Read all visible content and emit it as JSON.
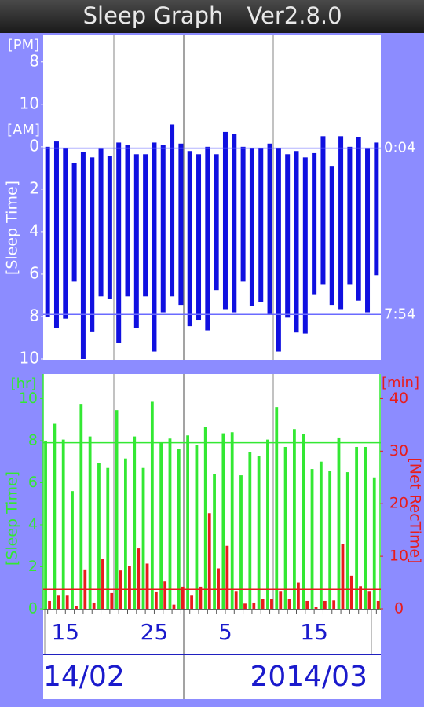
{
  "header": {
    "title": "Sleep Graph",
    "version": "Ver2.8.0"
  },
  "chart_data": [
    {
      "type": "range_bar",
      "y_label": "[Sleep Time]",
      "annotations": [
        "[PM]",
        "[AM]"
      ],
      "color": "#1010e0",
      "ylim": [
        -5.25,
        10
      ],
      "y_inverted": true,
      "yticks": [
        {
          "value": -4,
          "label": "8"
        },
        {
          "value": -2,
          "label": "10"
        },
        0,
        2,
        4,
        6,
        8,
        10
      ],
      "reference_lines": [
        {
          "value": 0.0667,
          "label": "0:04"
        },
        {
          "value": 7.9,
          "label": "7:54"
        }
      ],
      "reference_color": "#6a6aff",
      "starts": [
        0,
        -0.25,
        0.05,
        0.75,
        0.25,
        0.5,
        0.1,
        0.45,
        -0.2,
        -0.1,
        0.35,
        0.35,
        -0.2,
        -0.1,
        -1.05,
        -0.15,
        0.2,
        0.35,
        0,
        0.35,
        -0.7,
        -0.6,
        0,
        0.05,
        0.05,
        -0.15,
        0.05,
        0.35,
        0.2,
        0.5,
        0.3,
        -0.5,
        0.9,
        -0.5,
        0,
        -0.45,
        0.1,
        -0.2
      ],
      "ends": [
        8.0,
        8.55,
        8.1,
        6.35,
        10.0,
        8.7,
        7.05,
        7.15,
        9.25,
        7.05,
        8.55,
        7.05,
        9.65,
        7.8,
        7.05,
        7.45,
        8.45,
        8.15,
        8.65,
        6.75,
        7.65,
        7.8,
        6.35,
        7.5,
        7.3,
        7.9,
        9.65,
        8.05,
        8.75,
        8.8,
        6.95,
        6.5,
        7.45,
        7.65,
        6.5,
        7.25,
        7.8,
        6.05
      ]
    },
    {
      "type": "bar",
      "y_unit": "[hr]",
      "y2_unit": "[min]",
      "y_label": "[Sleep Time]",
      "y2_label": "[Net RecTime]",
      "categories": [
        null,
        null,
        "15",
        null,
        null,
        null,
        null,
        null,
        null,
        null,
        null,
        null,
        "25",
        null,
        null,
        null,
        null,
        null,
        null,
        null,
        "5",
        null,
        null,
        null,
        null,
        null,
        null,
        null,
        null,
        null,
        "15",
        null,
        null,
        null,
        null,
        null,
        null,
        null
      ],
      "x_group_labels": [
        "14/02",
        "2014/03"
      ],
      "ylim": [
        0,
        11.1
      ],
      "yticks": [
        0,
        2,
        4,
        6,
        8,
        10
      ],
      "y2lim": [
        0,
        44.4
      ],
      "y2ticks": [
        0,
        10,
        20,
        30,
        40
      ],
      "series": [
        {
          "color": "#33e833",
          "values": [
            8.0,
            8.8,
            8.05,
            5.6,
            9.75,
            8.2,
            6.95,
            6.7,
            9.45,
            7.15,
            8.2,
            6.7,
            9.85,
            7.9,
            8.1,
            7.6,
            8.25,
            7.8,
            8.65,
            6.4,
            8.35,
            8.4,
            6.35,
            7.45,
            7.25,
            8.05,
            9.6,
            7.7,
            8.55,
            8.3,
            6.65,
            7.0,
            6.55,
            8.15,
            6.5,
            7.7,
            7.7,
            6.25
          ]
        },
        {
          "color": "#e81c1c",
          "axis": "y2",
          "values": [
            1.5,
            2.5,
            2.5,
            0.5,
            7.5,
            1.2,
            9.5,
            3,
            7.3,
            8.2,
            11.5,
            8.6,
            3.3,
            5.2,
            0.8,
            4.2,
            2.5,
            4.2,
            18.2,
            7.7,
            12,
            3.4,
            1,
            1.2,
            1.8,
            1.8,
            3.4,
            1.8,
            5,
            1.5,
            0.3,
            1.5,
            1.6,
            12.3,
            6.3,
            4.3,
            3.4,
            1.5
          ]
        }
      ],
      "reference_lines": [
        {
          "value": 7.9,
          "axis": "y",
          "color": "#33e833"
        },
        {
          "value": 3.7,
          "axis": "y2",
          "color": "#e81c1c"
        }
      ]
    }
  ]
}
